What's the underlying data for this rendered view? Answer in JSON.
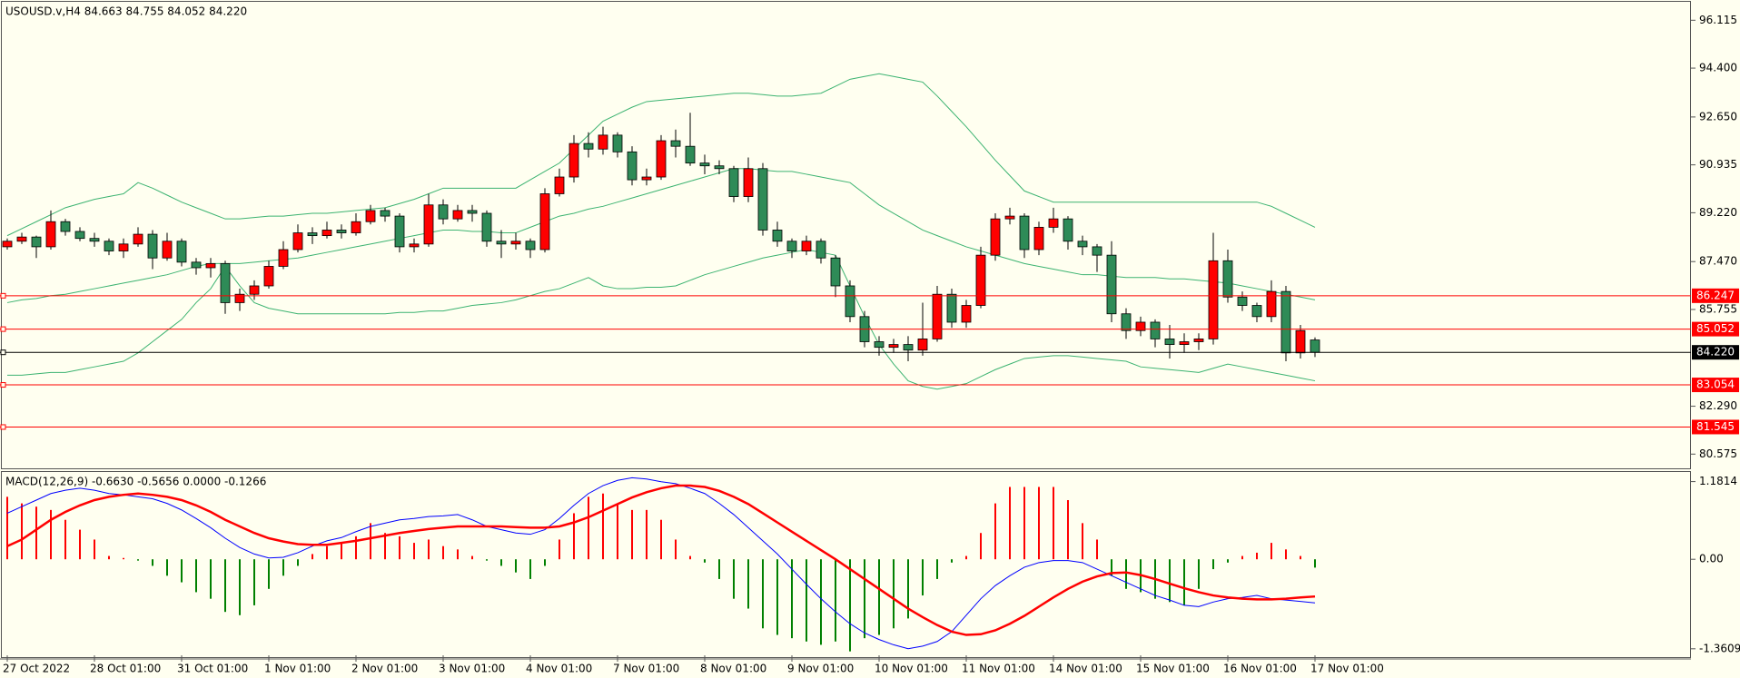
{
  "chart_data": [
    {
      "type": "candlestick",
      "title": "USOUSD.v,H4  84.663 84.755 84.052 84.220",
      "ylim": [
        80.13,
        96.71
      ],
      "yticks": [
        96.115,
        {
          "value": 94.4,
          "label": "94.400"
        },
        {
          "value": 92.65,
          "label": "92.650"
        },
        90.935,
        {
          "value": 89.22,
          "label": "89.220"
        },
        {
          "value": 87.47,
          "label": "87.470"
        },
        85.755,
        {
          "value": 82.29,
          "label": "82.290"
        },
        80.575
      ],
      "up_color": "#ff0000",
      "down_color": "#2e8b57",
      "wick_color": "#000000",
      "open": [
        88.0,
        88.2,
        88.35,
        88.0,
        88.9,
        88.55,
        88.3,
        88.2,
        87.85,
        88.1,
        88.45,
        87.6,
        88.2,
        87.45,
        87.25,
        87.4,
        86.0,
        86.3,
        86.6,
        87.3,
        87.9,
        88.5,
        88.4,
        88.6,
        88.5,
        88.9,
        89.3,
        89.1,
        88.0,
        88.1,
        89.5,
        89.0,
        89.3,
        89.2,
        88.2,
        88.1,
        88.2,
        87.9,
        89.9,
        90.5,
        91.7,
        91.5,
        92.0,
        91.4,
        90.4,
        90.5,
        91.8,
        91.6,
        91.0,
        90.9,
        90.8,
        89.8,
        90.8,
        88.6,
        88.2,
        87.85,
        88.2,
        87.6,
        86.6,
        85.5,
        84.6,
        84.4,
        84.5,
        84.3,
        84.7,
        86.3,
        85.3,
        85.9,
        87.7,
        89.0,
        89.1,
        87.9,
        88.7,
        89.0,
        88.2,
        88.0,
        87.7,
        85.6,
        85.0,
        85.3,
        84.7,
        84.5,
        84.6,
        84.7,
        87.5,
        86.2,
        85.9,
        85.5,
        86.4,
        84.2,
        84.663
      ],
      "high": [
        88.3,
        88.5,
        88.4,
        89.3,
        89.0,
        88.7,
        88.5,
        88.3,
        88.3,
        88.7,
        88.6,
        88.5,
        88.3,
        87.6,
        87.6,
        87.5,
        86.5,
        86.8,
        87.5,
        88.2,
        88.8,
        88.7,
        88.9,
        88.8,
        89.2,
        89.5,
        89.4,
        89.2,
        88.3,
        89.9,
        89.7,
        89.5,
        89.5,
        89.3,
        88.6,
        88.5,
        88.3,
        90.1,
        90.8,
        92.0,
        92.1,
        92.3,
        92.1,
        91.6,
        90.8,
        92.0,
        92.2,
        92.8,
        91.3,
        91.1,
        90.9,
        91.2,
        91.0,
        88.9,
        88.3,
        88.4,
        88.3,
        87.7,
        86.8,
        85.7,
        84.8,
        84.7,
        84.8,
        86.0,
        86.6,
        86.5,
        86.1,
        88.0,
        89.2,
        89.4,
        89.2,
        88.9,
        89.4,
        89.1,
        88.4,
        88.1,
        88.2,
        85.8,
        85.5,
        85.4,
        85.2,
        84.9,
        84.9,
        88.5,
        87.9,
        86.4,
        86.0,
        86.8,
        86.6,
        85.2,
        84.755
      ],
      "low": [
        87.9,
        88.1,
        87.6,
        87.9,
        88.4,
        88.2,
        88.0,
        87.7,
        87.6,
        88.0,
        87.2,
        87.5,
        87.3,
        87.0,
        86.9,
        85.6,
        85.7,
        86.1,
        86.5,
        87.2,
        87.8,
        88.1,
        88.3,
        88.3,
        88.4,
        88.8,
        88.9,
        87.8,
        87.8,
        88.0,
        88.8,
        88.9,
        88.9,
        88.0,
        87.6,
        87.9,
        87.6,
        87.8,
        89.8,
        90.3,
        91.2,
        91.3,
        91.2,
        90.2,
        90.2,
        90.4,
        91.2,
        90.9,
        90.6,
        90.6,
        89.6,
        89.6,
        88.4,
        88.0,
        87.6,
        87.7,
        87.4,
        86.2,
        85.3,
        84.4,
        84.1,
        84.2,
        83.9,
        84.1,
        84.6,
        85.1,
        85.1,
        85.8,
        87.5,
        88.8,
        87.6,
        87.7,
        88.5,
        87.9,
        87.7,
        87.1,
        85.3,
        84.7,
        84.8,
        84.4,
        84.0,
        84.2,
        84.3,
        84.5,
        86.0,
        85.7,
        85.3,
        85.3,
        83.9,
        84.0,
        84.052
      ],
      "close": [
        88.2,
        88.35,
        88.0,
        88.9,
        88.55,
        88.3,
        88.2,
        87.85,
        88.1,
        88.45,
        87.6,
        88.2,
        87.45,
        87.25,
        87.4,
        86.0,
        86.3,
        86.6,
        87.3,
        87.9,
        88.5,
        88.4,
        88.6,
        88.5,
        88.9,
        89.3,
        89.1,
        88.0,
        88.1,
        89.5,
        89.0,
        89.3,
        89.2,
        88.2,
        88.1,
        88.2,
        87.9,
        89.9,
        90.5,
        91.7,
        91.5,
        92.0,
        91.4,
        90.4,
        90.5,
        91.8,
        91.6,
        91.0,
        90.9,
        90.8,
        89.8,
        90.8,
        88.6,
        88.2,
        87.85,
        88.2,
        87.6,
        86.6,
        85.5,
        84.6,
        84.4,
        84.5,
        84.3,
        84.7,
        86.3,
        85.3,
        85.9,
        87.7,
        89.0,
        89.1,
        87.9,
        88.7,
        89.0,
        88.2,
        88.0,
        87.7,
        85.6,
        85.0,
        85.3,
        84.7,
        84.5,
        84.6,
        84.7,
        87.5,
        86.2,
        85.9,
        85.5,
        86.4,
        84.2,
        85.0,
        84.22
      ],
      "lines": [
        {
          "color": "#3cb371",
          "values": [
            88.4,
            88.65,
            88.9,
            89.15,
            89.4,
            89.55,
            89.7,
            89.8,
            89.9,
            90.3,
            90.1,
            89.85,
            89.6,
            89.4,
            89.2,
            89.0,
            89.0,
            89.05,
            89.1,
            89.1,
            89.15,
            89.2,
            89.2,
            89.25,
            89.3,
            89.35,
            89.4,
            89.55,
            89.7,
            89.9,
            90.1,
            90.1,
            90.1,
            90.1,
            90.1,
            90.1,
            90.4,
            90.7,
            91.0,
            91.5,
            92.0,
            92.5,
            92.75,
            93.0,
            93.2,
            93.25,
            93.3,
            93.35,
            93.4,
            93.45,
            93.5,
            93.5,
            93.45,
            93.4,
            93.4,
            93.45,
            93.5,
            93.75,
            94.0,
            94.1,
            94.2,
            94.1,
            94.0,
            93.9,
            93.4,
            92.85,
            92.3,
            91.7,
            91.1,
            90.55,
            90.0,
            89.8,
            89.6,
            89.6,
            89.6,
            89.6,
            89.6,
            89.6,
            89.6,
            89.6,
            89.6,
            89.6,
            89.6,
            89.6,
            89.6,
            89.6,
            89.6,
            89.45,
            89.2,
            88.95,
            88.7
          ]
        },
        {
          "color": "#3cb371",
          "values": [
            86.0,
            86.1,
            86.15,
            86.25,
            86.3,
            86.4,
            86.5,
            86.6,
            86.7,
            86.8,
            86.9,
            87.0,
            87.15,
            87.3,
            87.4,
            87.4,
            87.4,
            87.45,
            87.5,
            87.55,
            87.6,
            87.7,
            87.8,
            87.9,
            88.0,
            88.1,
            88.2,
            88.3,
            88.4,
            88.5,
            88.6,
            88.6,
            88.55,
            88.55,
            88.5,
            88.5,
            88.7,
            88.9,
            89.1,
            89.2,
            89.35,
            89.45,
            89.6,
            89.75,
            89.9,
            90.05,
            90.2,
            90.35,
            90.5,
            90.65,
            90.8,
            90.8,
            90.75,
            90.7,
            90.7,
            90.6,
            90.5,
            90.4,
            90.3,
            89.9,
            89.5,
            89.2,
            88.9,
            88.6,
            88.4,
            88.2,
            88.0,
            87.85,
            87.7,
            87.55,
            87.4,
            87.3,
            87.2,
            87.1,
            87.0,
            87.0,
            86.95,
            86.9,
            86.9,
            86.9,
            86.85,
            86.85,
            86.8,
            86.75,
            86.7,
            86.6,
            86.5,
            86.4,
            86.3,
            86.2,
            86.1
          ]
        },
        {
          "color": "#3cb371",
          "values": [
            83.4,
            83.4,
            83.45,
            83.5,
            83.5,
            83.6,
            83.7,
            83.8,
            83.9,
            84.2,
            84.6,
            85.0,
            85.4,
            86.0,
            86.5,
            87.3,
            86.6,
            86.0,
            85.8,
            85.7,
            85.6,
            85.6,
            85.6,
            85.6,
            85.6,
            85.6,
            85.6,
            85.65,
            85.65,
            85.7,
            85.7,
            85.8,
            85.9,
            85.95,
            86.0,
            86.1,
            86.25,
            86.4,
            86.5,
            86.7,
            86.9,
            86.6,
            86.5,
            86.5,
            86.55,
            86.55,
            86.6,
            86.8,
            87.0,
            87.15,
            87.3,
            87.45,
            87.6,
            87.7,
            87.8,
            87.9,
            87.8,
            87.7,
            86.6,
            85.5,
            84.5,
            83.8,
            83.2,
            83.0,
            82.9,
            83.0,
            83.1,
            83.35,
            83.6,
            83.8,
            84.0,
            84.05,
            84.1,
            84.1,
            84.05,
            84.0,
            83.95,
            83.9,
            83.7,
            83.65,
            83.6,
            83.55,
            83.5,
            83.65,
            83.8,
            83.7,
            83.6,
            83.5,
            83.4,
            83.3,
            83.2
          ]
        }
      ],
      "hlines": [
        {
          "value": 86.247,
          "color": "#ff0000"
        },
        {
          "value": 85.052,
          "color": "#ff0000"
        },
        {
          "value": 84.22,
          "label": "84.220",
          "color": "#000000"
        },
        {
          "value": 83.054,
          "color": "#ff0000"
        },
        {
          "value": 81.545,
          "color": "#ff0000"
        }
      ]
    },
    {
      "type": "macd",
      "title": "MACD(12,26,9) -0.6630 -0.5656 0.0000 -0.1266",
      "ylim": [
        -1.46,
        1.3
      ],
      "yticks": [
        1.1814,
        {
          "value": 0,
          "label": "0.00"
        },
        -1.3609
      ],
      "categories": [
        "27 Oct 2022",
        null,
        null,
        null,
        null,
        null,
        "28 Oct 01:00",
        null,
        null,
        null,
        null,
        null,
        "31 Oct 01:00",
        null,
        null,
        null,
        null,
        null,
        "1 Nov 01:00",
        null,
        null,
        null,
        null,
        null,
        "2 Nov 01:00",
        null,
        null,
        null,
        null,
        null,
        "3 Nov 01:00",
        null,
        null,
        null,
        null,
        null,
        "4 Nov 01:00",
        null,
        null,
        null,
        null,
        null,
        "7 Nov 01:00",
        null,
        null,
        null,
        null,
        null,
        "8 Nov 01:00",
        null,
        null,
        null,
        null,
        null,
        "9 Nov 01:00",
        null,
        null,
        null,
        null,
        null,
        "10 Nov 01:00",
        null,
        null,
        null,
        null,
        null,
        "11 Nov 01:00",
        null,
        null,
        null,
        null,
        null,
        "14 Nov 01:00",
        null,
        null,
        null,
        null,
        null,
        "15 Nov 01:00",
        null,
        null,
        null,
        null,
        null,
        "16 Nov 01:00",
        null,
        null,
        null,
        null,
        null,
        "17 Nov 01:00"
      ],
      "up_color": "#ff0000",
      "down_color": "#008000",
      "histogram": [
        0.95,
        0.85,
        0.8,
        0.75,
        0.6,
        0.45,
        0.3,
        0.05,
        0.02,
        -0.02,
        -0.1,
        -0.25,
        -0.35,
        -0.5,
        -0.6,
        -0.8,
        -0.85,
        -0.7,
        -0.45,
        -0.25,
        -0.1,
        0.08,
        0.2,
        0.25,
        0.35,
        0.55,
        0.4,
        0.35,
        0.25,
        0.3,
        0.2,
        0.15,
        0.05,
        -0.02,
        -0.1,
        -0.2,
        -0.3,
        -0.1,
        0.3,
        0.7,
        0.95,
        1.0,
        0.85,
        0.75,
        0.75,
        0.6,
        0.3,
        0.05,
        -0.05,
        -0.3,
        -0.6,
        -0.75,
        -1.05,
        -1.15,
        -1.2,
        -1.25,
        -1.3,
        -1.25,
        -1.4,
        -1.2,
        -1.15,
        -1.05,
        -0.9,
        -0.55,
        -0.3,
        -0.05,
        0.05,
        0.4,
        0.85,
        1.1,
        1.1,
        1.1,
        1.1,
        0.9,
        0.55,
        0.3,
        -0.25,
        -0.45,
        -0.5,
        -0.6,
        -0.65,
        -0.7,
        -0.45,
        -0.15,
        -0.05,
        0.05,
        0.1,
        0.25,
        0.15,
        0.05,
        -0.1266
      ],
      "lines": [
        {
          "color": "#0000ff",
          "width": 1,
          "values": [
            0.7,
            0.8,
            0.9,
            1.0,
            1.05,
            1.08,
            1.05,
            1.0,
            0.98,
            0.95,
            0.92,
            0.85,
            0.75,
            0.62,
            0.48,
            0.32,
            0.18,
            0.08,
            0.02,
            0.03,
            0.1,
            0.2,
            0.28,
            0.33,
            0.42,
            0.5,
            0.55,
            0.6,
            0.62,
            0.65,
            0.66,
            0.68,
            0.6,
            0.5,
            0.45,
            0.4,
            0.38,
            0.45,
            0.62,
            0.82,
            1.0,
            1.12,
            1.2,
            1.24,
            1.22,
            1.18,
            1.15,
            1.08,
            1.0,
            0.85,
            0.68,
            0.48,
            0.28,
            0.08,
            -0.15,
            -0.38,
            -0.6,
            -0.8,
            -0.98,
            -1.12,
            -1.22,
            -1.3,
            -1.36,
            -1.32,
            -1.25,
            -1.1,
            -0.85,
            -0.6,
            -0.4,
            -0.25,
            -0.12,
            -0.05,
            -0.02,
            -0.02,
            -0.05,
            -0.15,
            -0.25,
            -0.35,
            -0.45,
            -0.55,
            -0.62,
            -0.7,
            -0.72,
            -0.65,
            -0.6,
            -0.58,
            -0.55,
            -0.6,
            -0.62,
            -0.64,
            -0.663
          ]
        },
        {
          "color": "#ff0000",
          "width": 2.5,
          "values": [
            0.2,
            0.3,
            0.45,
            0.6,
            0.72,
            0.82,
            0.9,
            0.95,
            0.98,
            1.0,
            0.98,
            0.95,
            0.9,
            0.82,
            0.72,
            0.6,
            0.5,
            0.4,
            0.32,
            0.27,
            0.23,
            0.22,
            0.22,
            0.25,
            0.28,
            0.32,
            0.36,
            0.4,
            0.43,
            0.46,
            0.48,
            0.5,
            0.5,
            0.5,
            0.5,
            0.49,
            0.48,
            0.48,
            0.5,
            0.56,
            0.64,
            0.74,
            0.84,
            0.94,
            1.02,
            1.08,
            1.12,
            1.12,
            1.1,
            1.04,
            0.95,
            0.84,
            0.7,
            0.56,
            0.42,
            0.28,
            0.14,
            0.0,
            -0.15,
            -0.3,
            -0.45,
            -0.6,
            -0.75,
            -0.88,
            -1.0,
            -1.1,
            -1.15,
            -1.14,
            -1.08,
            -0.98,
            -0.86,
            -0.72,
            -0.58,
            -0.45,
            -0.34,
            -0.26,
            -0.21,
            -0.2,
            -0.24,
            -0.3,
            -0.37,
            -0.44,
            -0.5,
            -0.55,
            -0.58,
            -0.6,
            -0.61,
            -0.61,
            -0.6,
            -0.58,
            -0.5656
          ]
        }
      ]
    }
  ]
}
